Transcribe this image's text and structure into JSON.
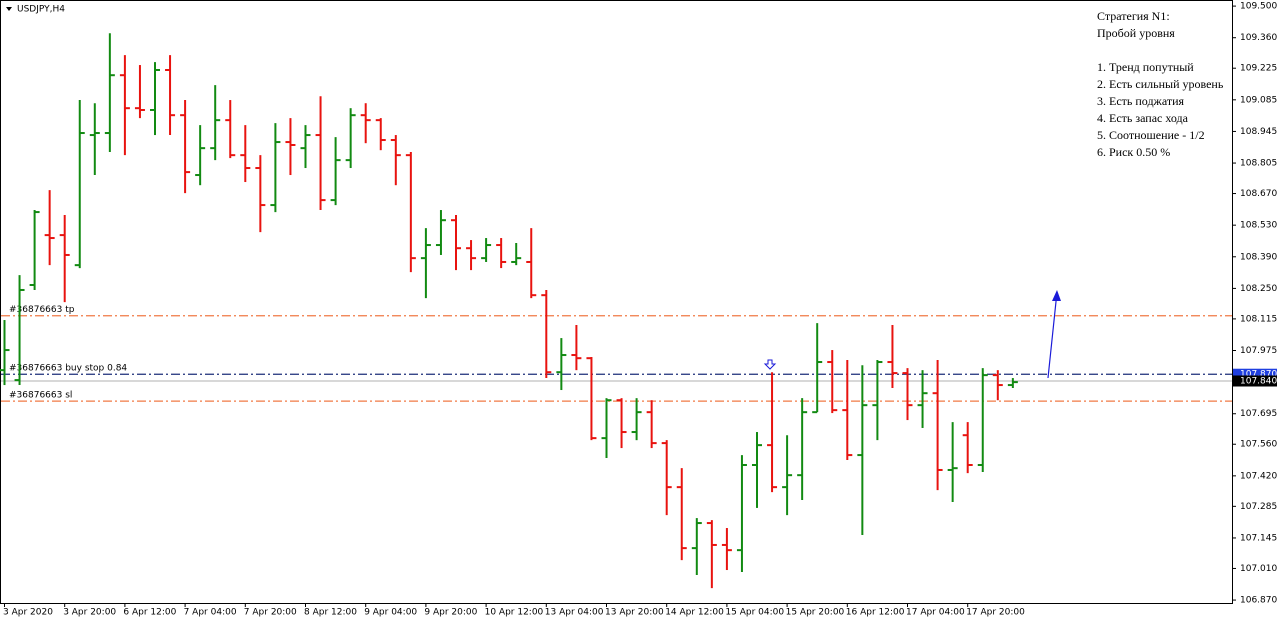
{
  "chart_data": {
    "type": "ohlc",
    "title": "USDJPY,H4",
    "categories": [
      "3 Apr 2020",
      null,
      null,
      null,
      "3 Apr 20:00",
      null,
      null,
      null,
      "6 Apr 12:00",
      null,
      null,
      null,
      "7 Apr 04:00",
      null,
      null,
      null,
      "7 Apr 20:00",
      null,
      null,
      null,
      "8 Apr 12:00",
      null,
      null,
      null,
      "9 Apr 04:00",
      null,
      null,
      null,
      "9 Apr 20:00",
      null,
      null,
      null,
      "10 Apr 12:00",
      null,
      null,
      null,
      "13 Apr 04:00",
      null,
      null,
      null,
      "13 Apr 20:00",
      null,
      null,
      null,
      "14 Apr 12:00",
      null,
      null,
      null,
      "15 Apr 04:00",
      null,
      null,
      null,
      "15 Apr 20:00",
      null,
      null,
      null,
      "16 Apr 12:00",
      null,
      null,
      null,
      "17 Apr 04:00",
      null,
      null,
      null,
      "17 Apr 20:00",
      null,
      null,
      null
    ],
    "open": [
      107.888,
      107.844,
      108.265,
      108.486,
      108.486,
      108.353,
      108.929,
      108.938,
      109.194,
      109.048,
      109.04,
      109.217,
      109.017,
      108.752,
      108.871,
      108.995,
      108.84,
      108.783,
      108.619,
      108.898,
      108.871,
      108.929,
      108.641,
      108.818,
      109.017,
      108.995,
      108.907,
      108.84,
      108.384,
      108.442,
      108.552,
      108.428,
      108.384,
      108.442,
      108.367,
      108.367,
      108.22,
      107.879,
      107.955,
      107.941,
      107.587,
      107.755,
      107.614,
      107.702,
      107.565,
      107.37,
      107.1,
      107.211,
      107.114,
      107.091,
      107.468,
      107.556,
      107.37,
      107.423,
      107.702,
      107.924,
      107.711,
      107.512,
      107.733,
      107.924,
      107.875,
      107.733,
      107.786,
      107.446,
      107.6,
      107.468,
      107.866,
      107.822
    ],
    "high": [
      108.11,
      108.309,
      108.597,
      108.685,
      108.575,
      109.084,
      109.07,
      109.38,
      109.283,
      109.239,
      109.252,
      109.283,
      109.084,
      108.973,
      109.15,
      109.084,
      108.973,
      108.84,
      108.982,
      109.004,
      108.973,
      109.101,
      108.92,
      109.048,
      109.07,
      109.004,
      108.929,
      108.854,
      108.517,
      108.597,
      108.575,
      108.464,
      108.473,
      108.473,
      108.451,
      108.517,
      108.243,
      108.03,
      108.088,
      107.946,
      107.764,
      107.764,
      107.764,
      107.755,
      107.578,
      107.454,
      107.233,
      107.224,
      107.189,
      107.512,
      107.614,
      107.879,
      107.6,
      107.764,
      108.096,
      107.977,
      107.933,
      107.91,
      107.933,
      108.088,
      107.897,
      107.888,
      107.933,
      107.658,
      107.658,
      107.897,
      107.888,
      107.853
    ],
    "low": [
      107.822,
      107.822,
      108.243,
      108.353,
      108.189,
      108.34,
      108.752,
      108.854,
      108.84,
      109.004,
      108.929,
      108.929,
      108.672,
      108.707,
      108.818,
      108.827,
      108.721,
      108.499,
      108.588,
      108.752,
      108.783,
      108.597,
      108.619,
      108.783,
      108.893,
      108.862,
      108.707,
      108.322,
      108.207,
      108.398,
      108.331,
      108.331,
      108.367,
      108.34,
      108.353,
      108.207,
      107.853,
      107.8,
      107.888,
      107.578,
      107.499,
      107.543,
      107.578,
      107.543,
      107.246,
      107.047,
      106.981,
      106.923,
      107.003,
      106.994,
      107.278,
      107.348,
      107.246,
      107.313,
      107.702,
      107.698,
      107.49,
      107.158,
      107.578,
      107.809,
      107.667,
      107.632,
      107.357,
      107.304,
      107.432,
      107.437,
      107.755,
      107.809
    ],
    "close": [
      107.977,
      108.243,
      108.588,
      108.473,
      108.398,
      108.938,
      108.938,
      109.194,
      109.048,
      109.04,
      109.217,
      109.017,
      108.765,
      108.871,
      108.995,
      108.84,
      108.783,
      108.619,
      108.898,
      108.885,
      108.929,
      108.641,
      108.818,
      109.017,
      108.995,
      108.907,
      108.84,
      108.384,
      108.442,
      108.552,
      108.428,
      108.384,
      108.442,
      108.367,
      108.384,
      108.22,
      107.879,
      107.955,
      107.941,
      107.587,
      107.755,
      107.614,
      107.702,
      107.565,
      107.37,
      107.1,
      107.211,
      107.114,
      107.091,
      107.468,
      107.556,
      107.37,
      107.423,
      107.702,
      107.924,
      107.711,
      107.512,
      107.733,
      107.924,
      107.875,
      107.733,
      107.786,
      107.446,
      107.454,
      107.468,
      107.866,
      107.822,
      107.835
    ],
    "up_color": "#128a12",
    "down_color": "#e8130f",
    "ylim": [
      106.857,
      109.527
    ],
    "yticks": [
      {
        "value": 109.5,
        "label": "109.500"
      },
      {
        "value": 109.36,
        "label": "109.360"
      },
      {
        "value": 109.225,
        "label": "109.225"
      },
      {
        "value": 109.085,
        "label": "109.085"
      },
      {
        "value": 108.945,
        "label": "108.945"
      },
      {
        "value": 108.805,
        "label": "108.805"
      },
      {
        "value": 108.67,
        "label": "108.670"
      },
      {
        "value": 108.53,
        "label": "108.530"
      },
      {
        "value": 108.39,
        "label": "108.390"
      },
      {
        "value": 108.25,
        "label": "108.250"
      },
      {
        "value": 108.115,
        "label": "108.115"
      },
      {
        "value": 107.975,
        "label": "107.975"
      },
      {
        "value": 107.695,
        "label": "107.695"
      },
      {
        "value": 107.56,
        "label": "107.560"
      },
      {
        "value": 107.42,
        "label": "107.420"
      },
      {
        "value": 107.285,
        "label": "107.285"
      },
      {
        "value": 107.145,
        "label": "107.145"
      },
      {
        "value": 107.01,
        "label": "107.010"
      },
      {
        "value": 106.87,
        "label": "106.870"
      }
    ],
    "levels": [
      {
        "label": "#36876663 tp",
        "value": 108.129,
        "color": "#f07a45"
      },
      {
        "label": "#36876663 buy stop 0.84",
        "value": 107.87,
        "color": "#1c2f7a"
      },
      {
        "label": "#36876663 sl",
        "value": 107.751,
        "color": "#f07a45"
      }
    ],
    "bid_line": {
      "value": 107.84,
      "color": "#b0b0b0"
    },
    "price_labels": [
      {
        "value": 107.87,
        "label": "107.870",
        "color": "#1f3fe0"
      },
      {
        "value": 107.84,
        "label": "107.840",
        "color": "#000000"
      }
    ],
    "annotation": [
      "Стратегия N1:",
      "Пробой уровня",
      "1. Тренд попутный",
      "2. Есть сильный уровень",
      "3. Есть поджатия",
      "4. Есть запас хода",
      "5. Соотношение - 1/2",
      "6. Риск 0.50 %"
    ]
  }
}
